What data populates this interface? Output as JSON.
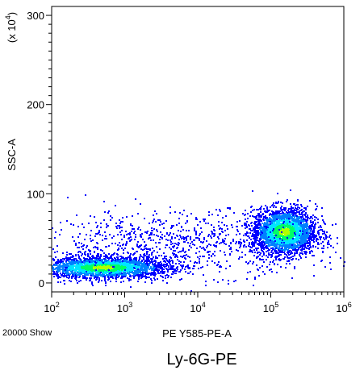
{
  "caption": "Ly-6G-PE",
  "footnote": "20000 Show",
  "chart_data": {
    "type": "scatter",
    "title": "",
    "xlabel": "PE Y585-PE-A",
    "ylabel": "SSC-A",
    "ylabel_multiplier": "(x 10",
    "ylabel_multiplier_exp": "4",
    "ylabel_multiplier_close": ")",
    "x_scale": "log",
    "xlim": [
      100,
      1000000
    ],
    "x_ticks": [
      {
        "value": 100,
        "base": "10",
        "exp": "2"
      },
      {
        "value": 1000,
        "base": "10",
        "exp": "3"
      },
      {
        "value": 10000,
        "base": "10",
        "exp": "4"
      },
      {
        "value": 100000,
        "base": "10",
        "exp": "5"
      },
      {
        "value": 1000000,
        "base": "10",
        "exp": "6"
      }
    ],
    "y_scale": "linear",
    "ylim": [
      -10,
      310
    ],
    "y_ticks": [
      {
        "value": 0,
        "label": "0"
      },
      {
        "value": 100,
        "label": "100"
      },
      {
        "value": 200,
        "label": "200"
      },
      {
        "value": 300,
        "label": "300"
      }
    ],
    "grid": false,
    "legend": "none",
    "event_count": 20000,
    "populations": [
      {
        "x_center": 500,
        "x_spread_decades": 0.45,
        "y_center": 18,
        "y_spread": 6,
        "density": "high",
        "color": "#00ff4c"
      },
      {
        "x_center": 150000,
        "x_spread_decades": 0.22,
        "y_center": 58,
        "y_spread": 13,
        "density": "high",
        "color": "#7fff00"
      },
      {
        "x_center": 5000,
        "x_spread_decades": 1.0,
        "y_center": 45,
        "y_spread": 18,
        "density": "low",
        "color": "#0000ff"
      }
    ],
    "density_colors": [
      "#0000ff",
      "#0080ff",
      "#00e5ff",
      "#00ff66",
      "#b2ff00",
      "#ffff00"
    ]
  }
}
